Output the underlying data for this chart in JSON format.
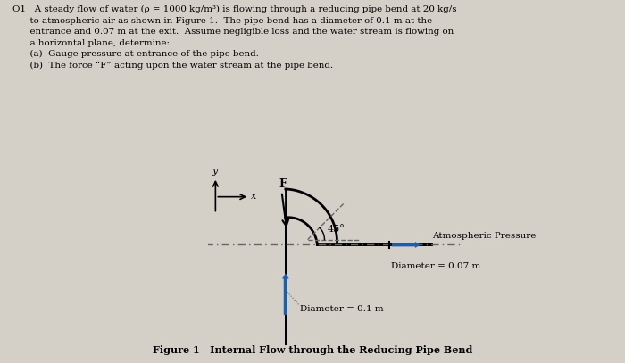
{
  "bg_color": "#d4d0c8",
  "text_color": "#000000",
  "title_line1": "Q1   A steady flow of water (ρ = 1000 kg/m³) is flowing through a reducing pipe bend at 20 kg/s",
  "title_line2": "      to atmospheric air as shown in Figure 1.  The pipe bend has a diameter of 0.1 m at the",
  "title_line3": "      entrance and 0.07 m at the exit.  Assume negligible loss and the water stream is flowing on",
  "title_line4": "      a horizontal plane, determine:",
  "title_line5": "      (a)  Gauge pressure at entrance of the pipe bend.",
  "title_line6": "      (b)  The force “F” acting upon the water stream at the pipe bend.",
  "figure_caption": "Figure 1   Internal Flow through the Reducing Pipe Bend",
  "label_atm": "Atmospheric Pressure",
  "label_d1": "Diameter = 0.1 m",
  "label_d2": "Diameter = 0.07 m",
  "label_F": "F",
  "label_angle": "45°",
  "label_x": "x",
  "label_y": "y",
  "pipe_color": "#000000",
  "arrow_color": "#1a5fad",
  "dash_color": "#666666",
  "pipe_lw": 2.0,
  "dash_lw": 1.0
}
